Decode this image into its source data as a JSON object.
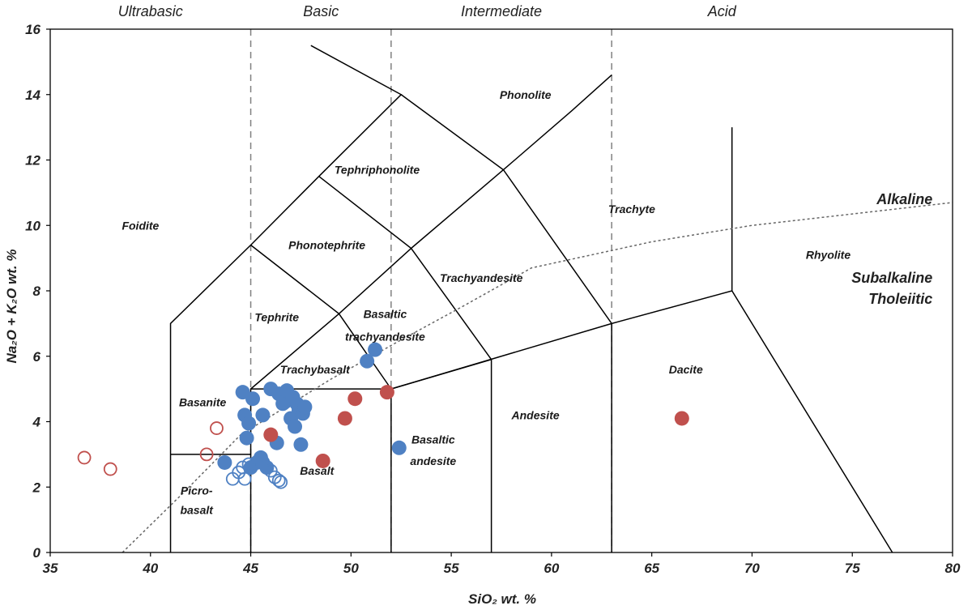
{
  "chart_data": {
    "type": "scatter",
    "title": "",
    "xlabel": "SiO₂  wt. %",
    "ylabel": "Na₂O + K₂O  wt. %",
    "xlim": [
      35,
      80
    ],
    "ylim": [
      0,
      16
    ],
    "xticks": [
      "35",
      "40",
      "45",
      "50",
      "55",
      "60",
      "65",
      "70",
      "75",
      "80"
    ],
    "yticks": [
      "0",
      "2",
      "4",
      "6",
      "8",
      "10",
      "12",
      "14",
      "16"
    ],
    "grid": false,
    "categories": [
      {
        "label": "Ultrabasic",
        "x": 40
      },
      {
        "label": "Basic",
        "x": 48.5
      },
      {
        "label": "Intermediate",
        "x": 57.5
      },
      {
        "label": "Acid",
        "x": 68.5
      }
    ],
    "divider_x": [
      45,
      52,
      63
    ],
    "series_labels": [
      {
        "text": "Alkaline",
        "x": 79,
        "y": 10.8
      },
      {
        "text": "Subalkaline",
        "x": 79,
        "y": 8.4
      },
      {
        "text": "Tholeiitic",
        "x": 79,
        "y": 7.75
      }
    ],
    "zone_labels": [
      {
        "text": "Foidite",
        "x": 39.5,
        "y": 10
      },
      {
        "text": "Phonolite",
        "x": 58.7,
        "y": 14
      },
      {
        "text": "Tephriphonolite",
        "x": 51.3,
        "y": 11.7
      },
      {
        "text": "Trachyte",
        "x": 64,
        "y": 10.5
      },
      {
        "text": "Phonotephrite",
        "x": 48.8,
        "y": 9.4
      },
      {
        "text": "Rhyolite",
        "x": 73.8,
        "y": 9.1
      },
      {
        "text": "Trachyandesite",
        "x": 56.5,
        "y": 8.4
      },
      {
        "text": "Tephrite",
        "x": 46.3,
        "y": 7.2
      },
      {
        "text": "Basaltic",
        "x": 51.7,
        "y": 7.3
      },
      {
        "text": "trachyandesite",
        "x": 51.7,
        "y": 6.6
      },
      {
        "text": "Trachybasalt",
        "x": 48.2,
        "y": 5.6
      },
      {
        "text": "Dacite",
        "x": 66.7,
        "y": 5.6
      },
      {
        "text": "Basanite",
        "x": 42.6,
        "y": 4.6
      },
      {
        "text": "Andesite",
        "x": 59.2,
        "y": 4.2
      },
      {
        "text": "Basaltic",
        "x": 54.1,
        "y": 3.45
      },
      {
        "text": "andesite",
        "x": 54.1,
        "y": 2.8
      },
      {
        "text": "Basalt",
        "x": 48.3,
        "y": 2.5
      },
      {
        "text": "Picro-",
        "x": 42.3,
        "y": 1.9
      },
      {
        "text": "basalt",
        "x": 42.3,
        "y": 1.3
      }
    ],
    "field_boundaries": [
      [
        [
          41,
          0
        ],
        [
          41,
          7
        ],
        [
          45,
          9.4
        ],
        [
          48.4,
          11.5
        ],
        [
          52.5,
          14
        ],
        [
          48,
          15.5
        ]
      ],
      [
        [
          41,
          3
        ],
        [
          45,
          3
        ]
      ],
      [
        [
          45,
          0
        ],
        [
          45,
          5
        ],
        [
          49.4,
          7.3
        ],
        [
          53,
          9.3
        ],
        [
          57.6,
          11.7
        ],
        [
          61,
          13.5
        ],
        [
          63,
          14.6
        ]
      ],
      [
        [
          45,
          5
        ],
        [
          52,
          5
        ],
        [
          52,
          0
        ]
      ],
      [
        [
          52,
          5
        ],
        [
          57,
          5.9
        ],
        [
          57,
          0
        ]
      ],
      [
        [
          52,
          5
        ],
        [
          63,
          7
        ],
        [
          69,
          8
        ],
        [
          77,
          0
        ]
      ],
      [
        [
          69,
          8
        ],
        [
          69,
          13
        ]
      ],
      [
        [
          45,
          9.4
        ],
        [
          49.4,
          7.3
        ],
        [
          52,
          5
        ]
      ],
      [
        [
          48.4,
          11.5
        ],
        [
          53,
          9.3
        ],
        [
          57,
          5.9
        ]
      ],
      [
        [
          52.5,
          14
        ],
        [
          57.6,
          11.7
        ],
        [
          63,
          7
        ],
        [
          63,
          0
        ]
      ]
    ],
    "alkaline_subalkaline_line": [
      [
        38.6,
        0
      ],
      [
        41.6,
        1.8
      ],
      [
        44.5,
        3.6
      ],
      [
        49,
        5.3
      ],
      [
        52.5,
        6.5
      ],
      [
        55.5,
        7.5
      ],
      [
        59,
        8.7
      ],
      [
        65,
        9.5
      ],
      [
        70,
        10
      ],
      [
        80,
        10.7
      ]
    ],
    "series": [
      {
        "color": "#4f81c3",
        "fill": "solid",
        "points": [
          [
            43.7,
            2.75
          ],
          [
            44.6,
            4.9
          ],
          [
            44.7,
            4.2
          ],
          [
            44.8,
            3.5
          ],
          [
            44.9,
            3.95
          ],
          [
            45,
            2.6
          ],
          [
            45.1,
            4.7
          ],
          [
            45.3,
            2.75
          ],
          [
            45.5,
            2.9
          ],
          [
            45.6,
            4.2
          ],
          [
            45.6,
            2.75
          ],
          [
            45.8,
            2.6
          ],
          [
            46,
            5
          ],
          [
            46.3,
            3.35
          ],
          [
            46.4,
            4.85
          ],
          [
            46.6,
            4.55
          ],
          [
            46.7,
            4.6
          ],
          [
            46.8,
            4.95
          ],
          [
            47,
            4.1
          ],
          [
            47.1,
            4.75
          ],
          [
            47.2,
            3.85
          ],
          [
            47.3,
            4.55
          ],
          [
            47.4,
            4.35
          ],
          [
            47.5,
            3.3
          ],
          [
            47.6,
            4.25
          ],
          [
            47.7,
            4.45
          ],
          [
            50.8,
            5.85
          ],
          [
            51.2,
            6.2
          ],
          [
            52.4,
            3.2
          ]
        ]
      },
      {
        "color": "#4f81c3",
        "fill": "hollow",
        "points": [
          [
            44.1,
            2.25
          ],
          [
            44.4,
            2.45
          ],
          [
            44.6,
            2.6
          ],
          [
            44.7,
            2.25
          ],
          [
            44.9,
            2.7
          ],
          [
            46,
            2.5
          ],
          [
            46.2,
            2.3
          ],
          [
            46.4,
            2.2
          ],
          [
            46.5,
            2.15
          ]
        ]
      },
      {
        "color": "#c0504d",
        "fill": "solid",
        "points": [
          [
            46,
            3.6
          ],
          [
            48.6,
            2.8
          ],
          [
            49.7,
            4.1
          ],
          [
            50.2,
            4.7
          ],
          [
            51.8,
            4.9
          ],
          [
            66.5,
            4.1
          ]
        ]
      },
      {
        "color": "#c0504d",
        "fill": "hollow",
        "points": [
          [
            36.7,
            2.9
          ],
          [
            38,
            2.55
          ],
          [
            42.8,
            3
          ],
          [
            43.3,
            3.8
          ]
        ]
      }
    ]
  }
}
